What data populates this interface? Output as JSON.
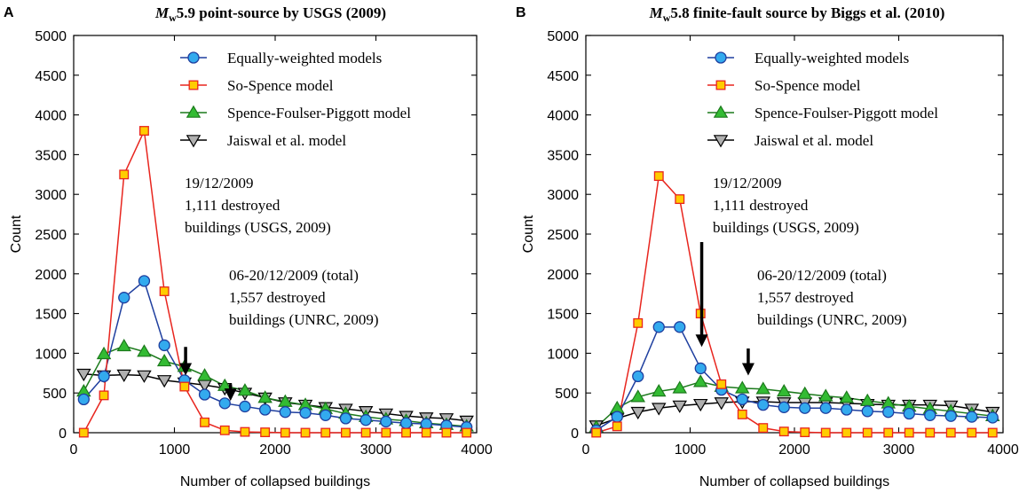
{
  "figure": {
    "axis_color": "#000000"
  },
  "chart_data": [
    {
      "panel": "A",
      "type": "line",
      "title_prefix": "M",
      "title_sub": "w",
      "title_rest": "5.9 point-source by USGS (2009)",
      "xlabel": "Number of collapsed buildings",
      "ylabel": "Count",
      "xlim": [
        0,
        4000
      ],
      "ylim": [
        0,
        5000
      ],
      "xticks": [
        0,
        1000,
        2000,
        3000,
        4000
      ],
      "yticks": [
        0,
        500,
        1000,
        1500,
        2000,
        2500,
        3000,
        3500,
        4000,
        4500,
        5000
      ],
      "legend_position": "top-right",
      "x": [
        100,
        300,
        500,
        700,
        900,
        1100,
        1300,
        1500,
        1700,
        1900,
        2100,
        2300,
        2500,
        2700,
        2900,
        3100,
        3300,
        3500,
        3700,
        3900
      ],
      "series": [
        {
          "name": "Equally-weighted models",
          "marker": "circle",
          "color": "#1f3f9f",
          "fill": "#33aaee",
          "values": [
            420,
            710,
            1700,
            1910,
            1100,
            660,
            480,
            370,
            330,
            290,
            260,
            250,
            220,
            180,
            160,
            140,
            120,
            110,
            90,
            70
          ]
        },
        {
          "name": "So-Spence model",
          "marker": "square",
          "color": "#e8251e",
          "fill": "#ffcc00",
          "values": [
            0,
            470,
            3250,
            3800,
            1780,
            580,
            130,
            30,
            10,
            5,
            0,
            0,
            0,
            0,
            0,
            0,
            0,
            0,
            0,
            0
          ]
        },
        {
          "name": "Spence-Foulser-Piggott model",
          "marker": "triangle-up",
          "color": "#1c7a1c",
          "fill": "#33bb33",
          "values": [
            520,
            990,
            1090,
            1020,
            900,
            830,
            720,
            590,
            530,
            440,
            390,
            350,
            300,
            240,
            200,
            170,
            150,
            120,
            100,
            80
          ]
        },
        {
          "name": "Jaiswal et al. model",
          "marker": "triangle-down",
          "color": "#000000",
          "fill": "#b0b0b0",
          "values": [
            740,
            720,
            730,
            720,
            660,
            630,
            600,
            560,
            500,
            440,
            380,
            350,
            320,
            300,
            270,
            240,
            210,
            190,
            180,
            150
          ]
        }
      ],
      "annotations": [
        {
          "lines": [
            "19/12/2009",
            "1,111 destroyed",
            "buildings (USGS, 2009)"
          ],
          "arrow_x": 1111,
          "arrow_top": 1080,
          "arrow_bottom": 720
        },
        {
          "lines": [
            "06-20/12/2009 (total)",
            "1,557 destroyed",
            "buildings (UNRC, 2009)"
          ],
          "arrow_x": 1557,
          "arrow_top": 610,
          "arrow_bottom": 400
        }
      ]
    },
    {
      "panel": "B",
      "type": "line",
      "title_prefix": "M",
      "title_sub": "w",
      "title_rest": "5.8 finite-fault source by Biggs et al. (2010)",
      "xlabel": "Number of collapsed buildings",
      "ylabel": "Count",
      "xlim": [
        0,
        4000
      ],
      "ylim": [
        0,
        5000
      ],
      "xticks": [
        0,
        1000,
        2000,
        3000,
        4000
      ],
      "yticks": [
        0,
        500,
        1000,
        1500,
        2000,
        2500,
        3000,
        3500,
        4000,
        4500,
        5000
      ],
      "legend_position": "top-right",
      "x": [
        100,
        300,
        500,
        700,
        900,
        1100,
        1300,
        1500,
        1700,
        1900,
        2100,
        2300,
        2500,
        2700,
        2900,
        3100,
        3300,
        3500,
        3700,
        3900
      ],
      "series": [
        {
          "name": "Equally-weighted models",
          "marker": "circle",
          "color": "#1f3f9f",
          "fill": "#33aaee",
          "values": [
            30,
            200,
            710,
            1330,
            1330,
            810,
            540,
            420,
            350,
            320,
            310,
            310,
            290,
            270,
            260,
            240,
            220,
            210,
            200,
            190
          ]
        },
        {
          "name": "So-Spence model",
          "marker": "square",
          "color": "#e8251e",
          "fill": "#ffcc00",
          "values": [
            0,
            80,
            1380,
            3230,
            2940,
            1500,
            610,
            230,
            60,
            15,
            5,
            0,
            0,
            0,
            0,
            0,
            0,
            0,
            0,
            0
          ]
        },
        {
          "name": "Spence-Foulser-Piggott model",
          "marker": "triangle-up",
          "color": "#1c7a1c",
          "fill": "#33bb33",
          "values": [
            70,
            310,
            450,
            520,
            560,
            640,
            580,
            560,
            550,
            520,
            490,
            460,
            440,
            400,
            370,
            330,
            300,
            270,
            240,
            210
          ]
        },
        {
          "name": "Jaiswal et al. model",
          "marker": "triangle-down",
          "color": "#000000",
          "fill": "#b0b0b0",
          "values": [
            90,
            180,
            260,
            310,
            340,
            360,
            380,
            390,
            390,
            380,
            380,
            380,
            370,
            360,
            350,
            350,
            350,
            340,
            300,
            260
          ]
        }
      ],
      "annotations": [
        {
          "lines": [
            "19/12/2009",
            "1,111 destroyed",
            "buildings (USGS, 2009)"
          ],
          "arrow_x": 1111,
          "arrow_top": 2400,
          "arrow_bottom": 1080
        },
        {
          "lines": [
            "06-20/12/2009 (total)",
            "1,557 destroyed",
            "buildings (UNRC, 2009)"
          ],
          "arrow_x": 1557,
          "arrow_top": 1060,
          "arrow_bottom": 720
        }
      ]
    }
  ]
}
